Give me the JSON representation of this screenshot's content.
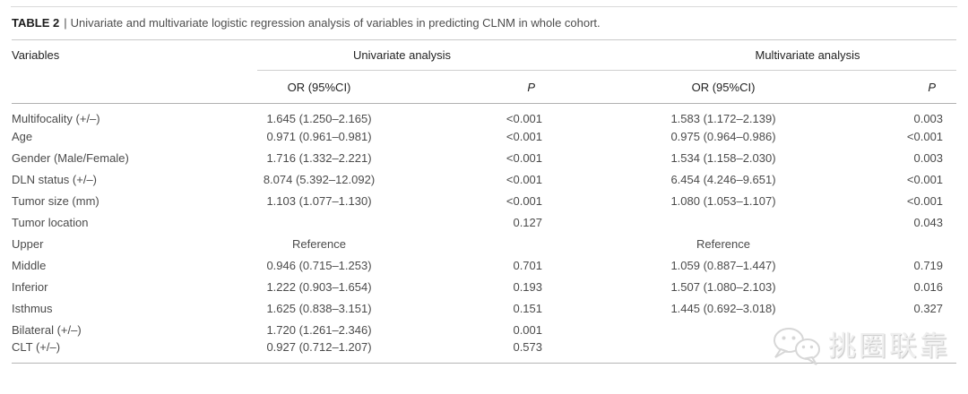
{
  "page": {
    "title_label": "TABLE 2",
    "title_separator": "|",
    "title_text": "Univariate and multivariate logistic regression analysis of variables in predicting CLNM in whole cohort."
  },
  "table": {
    "columns": {
      "variables": "Variables",
      "univariate_group": "Univariate analysis",
      "multivariate_group": "Multivariate analysis",
      "or_header": "OR (95%CI)",
      "p_header": "P"
    },
    "rows": [
      {
        "variable": "Multifocality (+/–)",
        "uni_or": "1.645 (1.250–2.165)",
        "uni_p": "<0.001",
        "multi_or": "1.583 (1.172–2.139)",
        "multi_p": "0.003"
      },
      {
        "variable": "Age",
        "uni_or": "0.971 (0.961–0.981)",
        "uni_p": "<0.001",
        "multi_or": "0.975 (0.964–0.986)",
        "multi_p": "<0.001"
      },
      {
        "variable": "Gender (Male/Female)",
        "uni_or": "1.716 (1.332–2.221)",
        "uni_p": "<0.001",
        "multi_or": "1.534 (1.158–2.030)",
        "multi_p": "0.003"
      },
      {
        "variable": "DLN status (+/–)",
        "uni_or": "8.074 (5.392–12.092)",
        "uni_p": "<0.001",
        "multi_or": "6.454 (4.246–9.651)",
        "multi_p": "<0.001"
      },
      {
        "variable": "Tumor size (mm)",
        "uni_or": "1.103 (1.077–1.130)",
        "uni_p": "<0.001",
        "multi_or": "1.080 (1.053–1.107)",
        "multi_p": "<0.001"
      },
      {
        "variable": "Tumor location",
        "uni_or": "",
        "uni_p": "0.127",
        "multi_or": "",
        "multi_p": "0.043"
      },
      {
        "variable": "Upper",
        "uni_or": "Reference",
        "uni_p": "",
        "multi_or": "Reference",
        "multi_p": ""
      },
      {
        "variable": "Middle",
        "uni_or": "0.946 (0.715–1.253)",
        "uni_p": "0.701",
        "multi_or": "1.059 (0.887–1.447)",
        "multi_p": "0.719"
      },
      {
        "variable": "Inferior",
        "uni_or": "1.222 (0.903–1.654)",
        "uni_p": "0.193",
        "multi_or": "1.507 (1.080–2.103)",
        "multi_p": "0.016"
      },
      {
        "variable": "Isthmus",
        "uni_or": "1.625 (0.838–3.151)",
        "uni_p": "0.151",
        "multi_or": "1.445 (0.692–3.018)",
        "multi_p": "0.327"
      },
      {
        "variable": "Bilateral (+/–)",
        "uni_or": "1.720 (1.261–2.346)",
        "uni_p": "0.001",
        "multi_or": "",
        "multi_p": ""
      },
      {
        "variable": "CLT (+/–)",
        "uni_or": "0.927 (0.712–1.207)",
        "uni_p": "0.573",
        "multi_or": "",
        "multi_p": ""
      }
    ]
  },
  "watermark": {
    "icon": "wechat-chat-bubbles-icon",
    "text": "挑圈联靠"
  },
  "colors": {
    "background": "#ffffff",
    "text_body": "#4b4b4b",
    "text_heading": "#222222",
    "rule_light": "#d9d9d9",
    "rule_medium": "#b0b0b0",
    "watermark": "#e8e8e8"
  }
}
